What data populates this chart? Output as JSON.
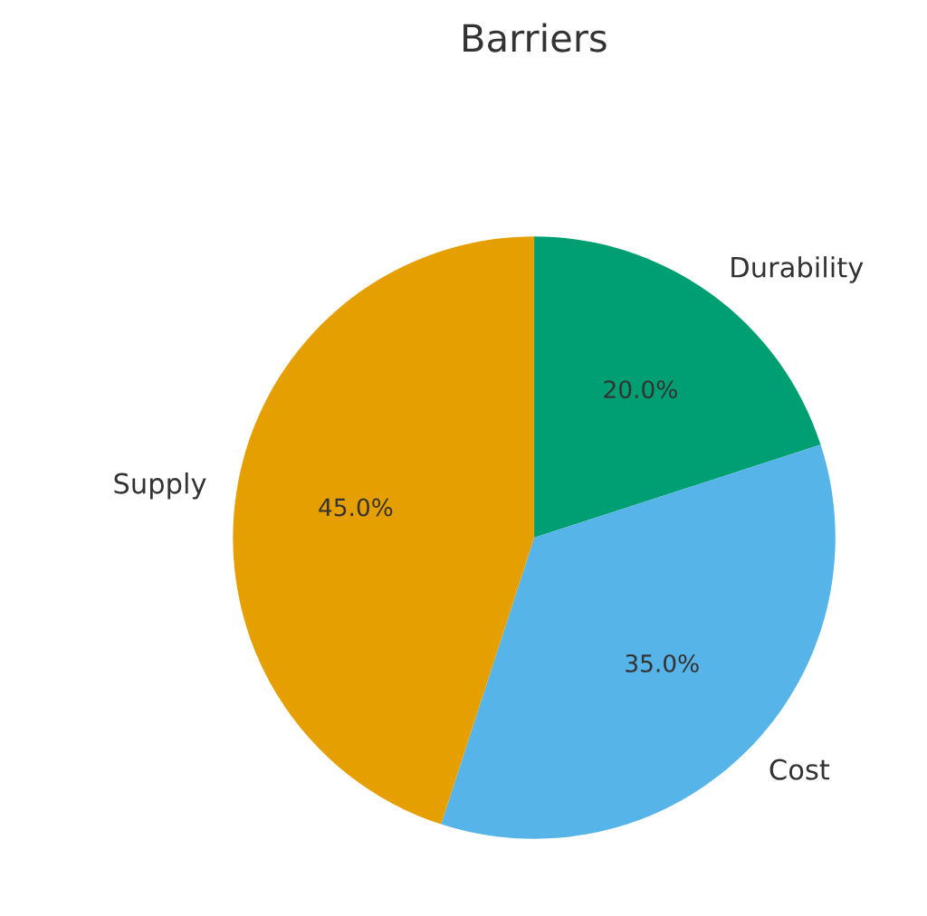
{
  "chart_data": {
    "type": "pie",
    "title": "Barriers",
    "categories": [
      "Durability",
      "Cost",
      "Supply"
    ],
    "values": [
      20,
      35,
      45
    ],
    "colors": [
      "#009e73",
      "#56b4e9",
      "#e69f00"
    ],
    "value_labels": [
      "20.0%",
      "35.0%",
      "45.0%"
    ]
  }
}
